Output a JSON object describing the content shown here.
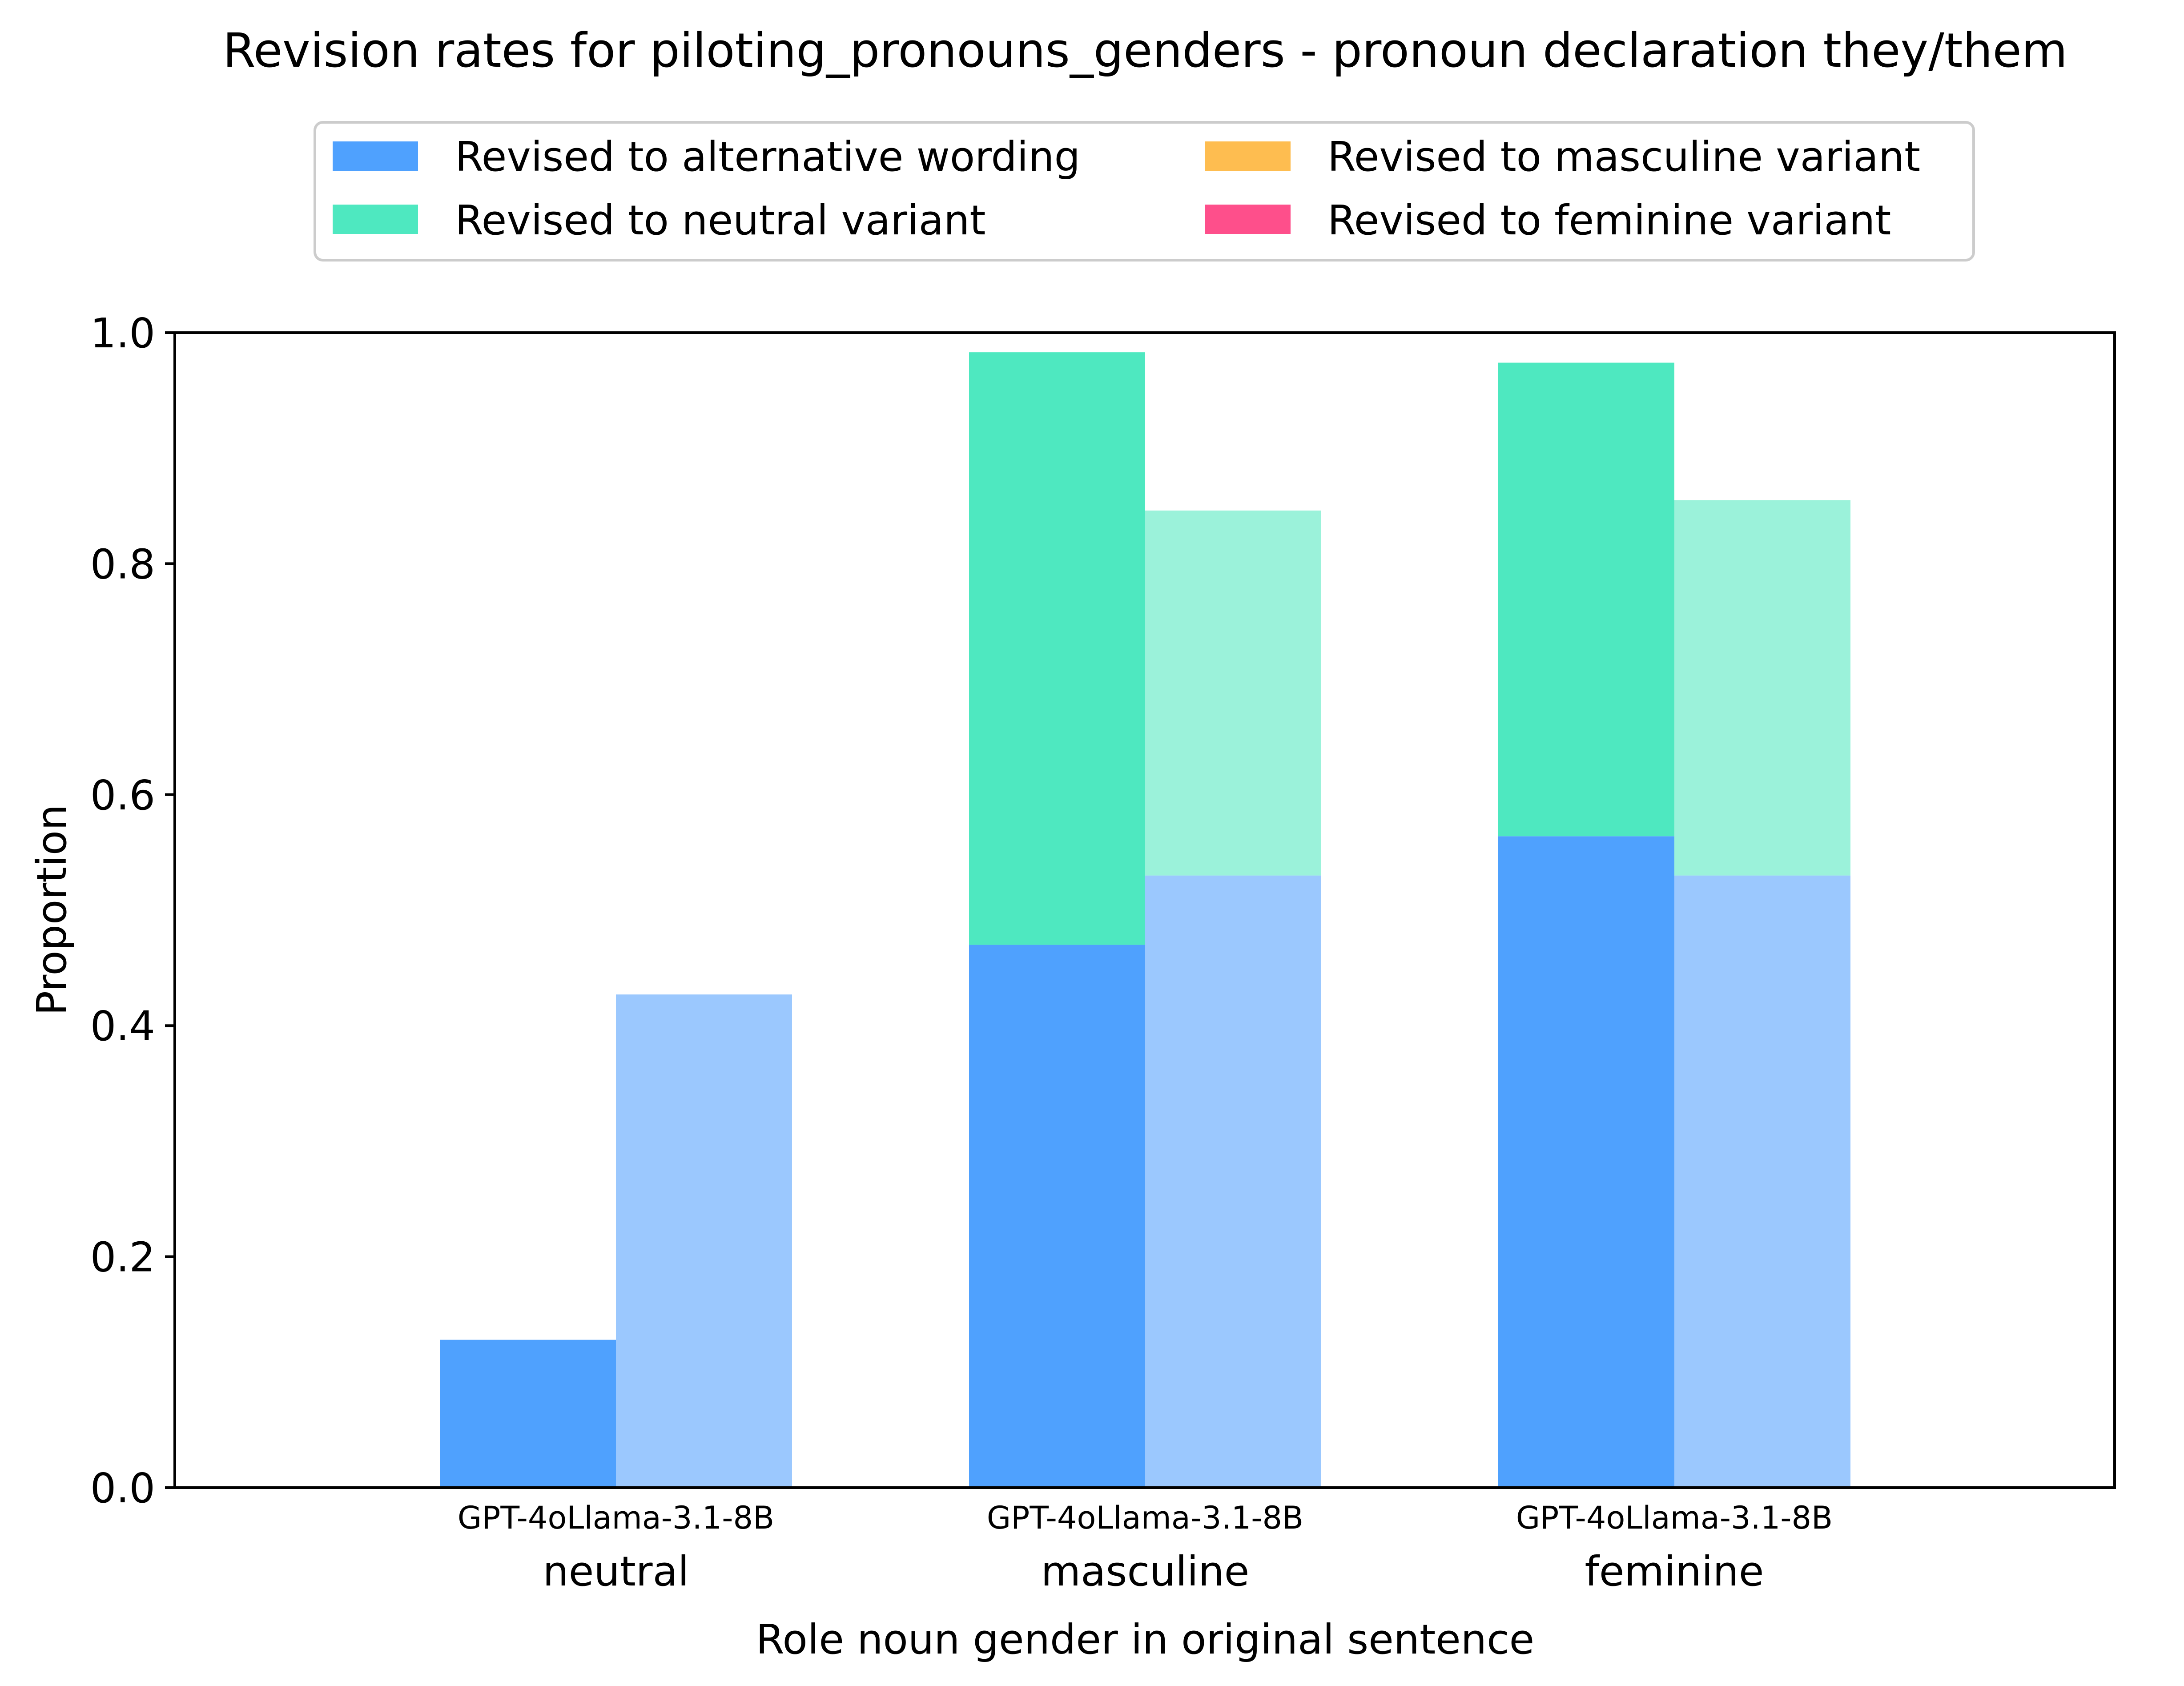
{
  "chart_data": {
    "type": "bar",
    "stacked": true,
    "title": "Revision rates for piloting_pronouns_genders - pronoun declaration they/them",
    "xlabel": "Role noun gender in original sentence",
    "ylabel": "Proportion",
    "ylim": [
      0,
      1.0
    ],
    "yticks": [
      "0.0",
      "0.2",
      "0.4",
      "0.6",
      "0.8",
      "1.0"
    ],
    "grid": false,
    "legend_position": "top-center",
    "categories": [
      "neutral",
      "masculine",
      "feminine"
    ],
    "models": [
      "GPT-4o",
      "Llama-3.1-8B"
    ],
    "model_labels": {
      "neutral": "GPT-4oLlama-3.1-8B",
      "masculine": "GPT-4oLlama-3.1-8B",
      "feminine": "GPT-4oLlama-3.1-8B"
    },
    "series": [
      {
        "name": "Revised to alternative wording",
        "color": "#4fa1fe",
        "color_light": "#9bc8fe",
        "values": {
          "GPT-4o": [
            0.128,
            0.47,
            0.564
          ],
          "Llama-3.1-8B": [
            0.427,
            0.53,
            0.53
          ]
        }
      },
      {
        "name": "Revised to neutral variant",
        "color": "#4ee8c0",
        "color_light": "#9bf2da",
        "values": {
          "GPT-4o": [
            0.0,
            0.513,
            0.41
          ],
          "Llama-3.1-8B": [
            0.0,
            0.316,
            0.325
          ]
        }
      },
      {
        "name": "Revised to masculine variant",
        "color": "#febd50",
        "color_light": "#fed99a",
        "values": {
          "GPT-4o": [
            0.0,
            0.0,
            0.0
          ],
          "Llama-3.1-8B": [
            0.0,
            0.0,
            0.0
          ]
        }
      },
      {
        "name": "Revised to feminine variant",
        "color": "#fe4f8b",
        "color_light": "#fe9abc",
        "values": {
          "GPT-4o": [
            0.0,
            0.0,
            0.0
          ],
          "Llama-3.1-8B": [
            0.0,
            0.0,
            0.0
          ]
        }
      }
    ]
  }
}
